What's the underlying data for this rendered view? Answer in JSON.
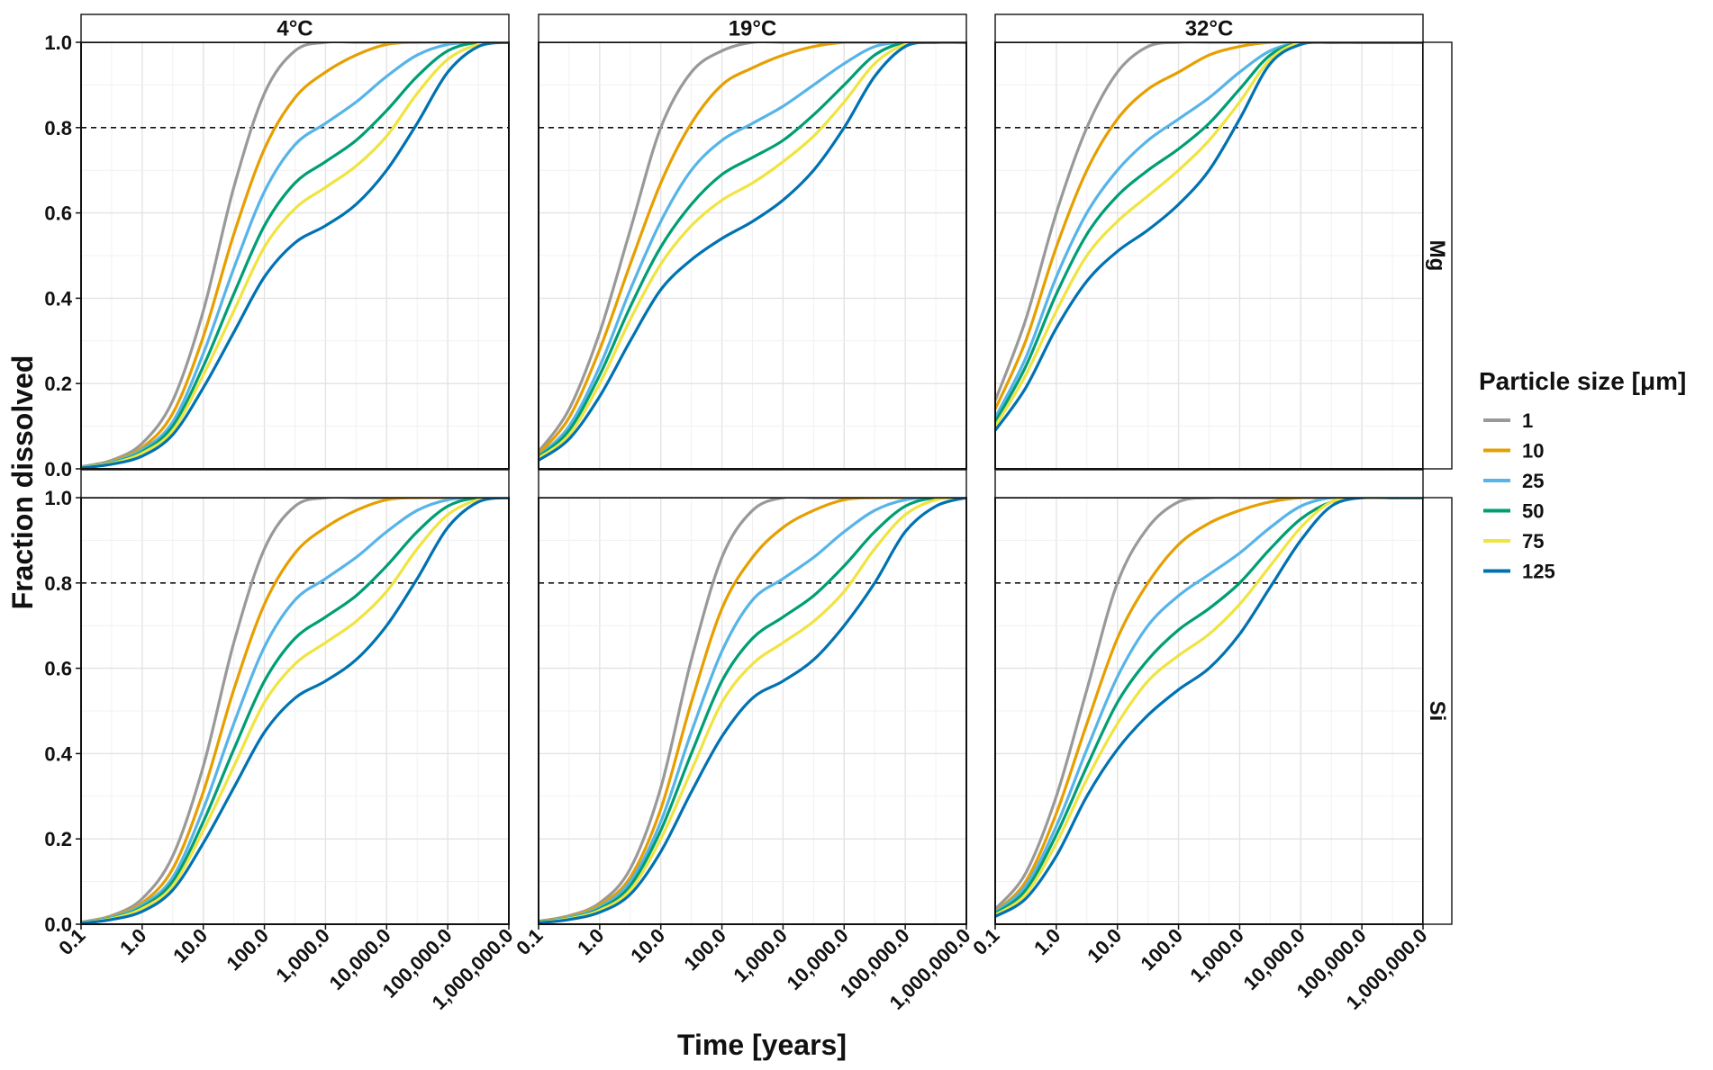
{
  "chart_data": {
    "type": "line",
    "xlabel": "Time [years]",
    "ylabel": "Fraction dissolved",
    "x_scale": "log10",
    "xlim": [
      0.1,
      1000000
    ],
    "ylim": [
      0,
      1
    ],
    "x_ticks": [
      0.1,
      1,
      10,
      100,
      1000,
      10000,
      100000,
      1000000
    ],
    "x_tick_labels": [
      "0.1",
      "1.0",
      "10.0",
      "100.0",
      "1,000.0",
      "10,000.0",
      "100,000.0",
      "1,000,000.0"
    ],
    "y_ticks": [
      0,
      0.2,
      0.4,
      0.6,
      0.8,
      1.0
    ],
    "y_tick_labels": [
      "0.0",
      "0.2",
      "0.4",
      "0.6",
      "0.8",
      "1.0"
    ],
    "reference_line": {
      "y": 0.8,
      "style": "dashed"
    },
    "grid": true,
    "columns": [
      "4°C",
      "19°C",
      "32°C"
    ],
    "rows": [
      "Mg",
      "Si"
    ],
    "legend": {
      "title": "Particle size [μm]",
      "position": "right",
      "entries": [
        {
          "label": "1",
          "color": "#999999"
        },
        {
          "label": "10",
          "color": "#E69F00"
        },
        {
          "label": "25",
          "color": "#56B4E9"
        },
        {
          "label": "50",
          "color": "#009E73"
        },
        {
          "label": "75",
          "color": "#F0E442"
        },
        {
          "label": "125",
          "color": "#0072B2"
        }
      ]
    },
    "x_log10_grid": [
      -1,
      -0.5,
      0,
      0.5,
      1,
      1.5,
      2,
      2.5,
      3,
      3.5,
      4,
      4.5,
      5,
      5.5,
      6
    ],
    "panels": [
      {
        "column": "4°C",
        "row": "Mg",
        "series": [
          {
            "name": "1",
            "values": [
              0.005,
              0.02,
              0.06,
              0.16,
              0.37,
              0.66,
              0.88,
              0.98,
              1.0,
              1.0,
              1.0,
              1.0,
              1.0,
              1.0,
              1.0
            ]
          },
          {
            "name": "10",
            "values": [
              0.004,
              0.018,
              0.05,
              0.13,
              0.31,
              0.55,
              0.75,
              0.87,
              0.93,
              0.97,
              0.995,
              1.0,
              1.0,
              1.0,
              1.0
            ]
          },
          {
            "name": "25",
            "values": [
              0.004,
              0.016,
              0.045,
              0.11,
              0.27,
              0.47,
              0.65,
              0.76,
              0.81,
              0.86,
              0.92,
              0.97,
              0.995,
              1.0,
              1.0
            ]
          },
          {
            "name": "50",
            "values": [
              0.003,
              0.014,
              0.04,
              0.1,
              0.24,
              0.41,
              0.57,
              0.67,
              0.72,
              0.77,
              0.84,
              0.92,
              0.98,
              1.0,
              1.0
            ]
          },
          {
            "name": "75",
            "values": [
              0.003,
              0.013,
              0.037,
              0.09,
              0.22,
              0.37,
              0.52,
              0.61,
              0.66,
              0.71,
              0.78,
              0.88,
              0.96,
              0.995,
              1.0
            ]
          },
          {
            "name": "125",
            "values": [
              0.002,
              0.011,
              0.03,
              0.08,
              0.19,
              0.32,
              0.45,
              0.53,
              0.57,
              0.62,
              0.7,
              0.81,
              0.93,
              0.99,
              1.0
            ]
          }
        ]
      },
      {
        "column": "19°C",
        "row": "Mg",
        "series": [
          {
            "name": "1",
            "values": [
              0.04,
              0.14,
              0.32,
              0.56,
              0.8,
              0.93,
              0.98,
              1.0,
              1.0,
              1.0,
              1.0,
              1.0,
              1.0,
              1.0,
              1.0
            ]
          },
          {
            "name": "10",
            "values": [
              0.035,
              0.12,
              0.28,
              0.48,
              0.67,
              0.81,
              0.9,
              0.94,
              0.97,
              0.99,
              1.0,
              1.0,
              1.0,
              1.0,
              1.0
            ]
          },
          {
            "name": "25",
            "values": [
              0.03,
              0.1,
              0.24,
              0.42,
              0.58,
              0.7,
              0.77,
              0.81,
              0.85,
              0.9,
              0.95,
              0.99,
              1.0,
              1.0,
              1.0
            ]
          },
          {
            "name": "50",
            "values": [
              0.028,
              0.09,
              0.22,
              0.38,
              0.52,
              0.62,
              0.69,
              0.73,
              0.77,
              0.83,
              0.9,
              0.97,
              1.0,
              1.0,
              1.0
            ]
          },
          {
            "name": "75",
            "values": [
              0.025,
              0.08,
              0.2,
              0.35,
              0.48,
              0.57,
              0.63,
              0.67,
              0.72,
              0.78,
              0.86,
              0.95,
              0.995,
              1.0,
              1.0
            ]
          },
          {
            "name": "125",
            "values": [
              0.02,
              0.07,
              0.17,
              0.3,
              0.42,
              0.49,
              0.54,
              0.58,
              0.63,
              0.7,
              0.8,
              0.92,
              0.99,
              1.0,
              1.0
            ]
          }
        ]
      },
      {
        "column": "32°C",
        "row": "Mg",
        "series": [
          {
            "name": "1",
            "values": [
              0.16,
              0.35,
              0.6,
              0.8,
              0.93,
              0.99,
              1.0,
              1.0,
              1.0,
              1.0,
              1.0,
              1.0,
              1.0,
              1.0,
              1.0
            ]
          },
          {
            "name": "10",
            "values": [
              0.14,
              0.3,
              0.52,
              0.7,
              0.82,
              0.89,
              0.93,
              0.97,
              0.99,
              1.0,
              1.0,
              1.0,
              1.0,
              1.0,
              1.0
            ]
          },
          {
            "name": "25",
            "values": [
              0.12,
              0.26,
              0.45,
              0.6,
              0.7,
              0.77,
              0.82,
              0.87,
              0.93,
              0.98,
              1.0,
              1.0,
              1.0,
              1.0,
              1.0
            ]
          },
          {
            "name": "50",
            "values": [
              0.11,
              0.24,
              0.41,
              0.55,
              0.64,
              0.7,
              0.75,
              0.81,
              0.89,
              0.97,
              1.0,
              1.0,
              1.0,
              1.0,
              1.0
            ]
          },
          {
            "name": "75",
            "values": [
              0.1,
              0.22,
              0.37,
              0.5,
              0.58,
              0.64,
              0.7,
              0.77,
              0.86,
              0.96,
              1.0,
              1.0,
              1.0,
              1.0,
              1.0
            ]
          },
          {
            "name": "125",
            "values": [
              0.09,
              0.19,
              0.33,
              0.44,
              0.51,
              0.56,
              0.62,
              0.7,
              0.82,
              0.95,
              0.995,
              1.0,
              1.0,
              1.0,
              1.0
            ]
          }
        ]
      },
      {
        "column": "4°C",
        "row": "Si",
        "series": [
          {
            "name": "1",
            "values": [
              0.005,
              0.02,
              0.06,
              0.16,
              0.37,
              0.66,
              0.88,
              0.98,
              1.0,
              1.0,
              1.0,
              1.0,
              1.0,
              1.0,
              1.0
            ]
          },
          {
            "name": "10",
            "values": [
              0.004,
              0.018,
              0.05,
              0.13,
              0.31,
              0.55,
              0.75,
              0.87,
              0.93,
              0.97,
              0.995,
              1.0,
              1.0,
              1.0,
              1.0
            ]
          },
          {
            "name": "25",
            "values": [
              0.004,
              0.016,
              0.045,
              0.11,
              0.27,
              0.47,
              0.65,
              0.76,
              0.81,
              0.86,
              0.92,
              0.97,
              0.995,
              1.0,
              1.0
            ]
          },
          {
            "name": "50",
            "values": [
              0.003,
              0.014,
              0.04,
              0.1,
              0.24,
              0.41,
              0.57,
              0.67,
              0.72,
              0.77,
              0.84,
              0.92,
              0.98,
              1.0,
              1.0
            ]
          },
          {
            "name": "75",
            "values": [
              0.003,
              0.013,
              0.037,
              0.09,
              0.22,
              0.37,
              0.52,
              0.61,
              0.66,
              0.71,
              0.78,
              0.88,
              0.96,
              0.995,
              1.0
            ]
          },
          {
            "name": "125",
            "values": [
              0.002,
              0.011,
              0.03,
              0.08,
              0.19,
              0.32,
              0.45,
              0.53,
              0.57,
              0.62,
              0.7,
              0.81,
              0.93,
              0.99,
              1.0
            ]
          }
        ]
      },
      {
        "column": "19°C",
        "row": "Si",
        "series": [
          {
            "name": "1",
            "values": [
              0.007,
              0.02,
              0.05,
              0.13,
              0.32,
              0.62,
              0.86,
              0.97,
              1.0,
              1.0,
              1.0,
              1.0,
              1.0,
              1.0,
              1.0
            ]
          },
          {
            "name": "10",
            "values": [
              0.006,
              0.018,
              0.045,
              0.11,
              0.27,
              0.52,
              0.74,
              0.86,
              0.93,
              0.97,
              0.995,
              1.0,
              1.0,
              1.0,
              1.0
            ]
          },
          {
            "name": "25",
            "values": [
              0.005,
              0.016,
              0.04,
              0.1,
              0.24,
              0.45,
              0.64,
              0.76,
              0.81,
              0.86,
              0.92,
              0.97,
              0.995,
              1.0,
              1.0
            ]
          },
          {
            "name": "50",
            "values": [
              0.005,
              0.014,
              0.036,
              0.09,
              0.22,
              0.4,
              0.57,
              0.67,
              0.72,
              0.77,
              0.84,
              0.92,
              0.98,
              1.0,
              1.0
            ]
          },
          {
            "name": "75",
            "values": [
              0.004,
              0.013,
              0.033,
              0.08,
              0.2,
              0.36,
              0.52,
              0.61,
              0.66,
              0.71,
              0.78,
              0.88,
              0.96,
              0.995,
              1.0
            ]
          },
          {
            "name": "125",
            "values": [
              0.003,
              0.011,
              0.028,
              0.07,
              0.17,
              0.31,
              0.44,
              0.53,
              0.57,
              0.62,
              0.7,
              0.8,
              0.92,
              0.98,
              1.0
            ]
          }
        ]
      },
      {
        "column": "32°C",
        "row": "Si",
        "series": [
          {
            "name": "1",
            "values": [
              0.035,
              0.12,
              0.3,
              0.55,
              0.8,
              0.93,
              0.99,
              1.0,
              1.0,
              1.0,
              1.0,
              1.0,
              1.0,
              1.0,
              1.0
            ]
          },
          {
            "name": "10",
            "values": [
              0.03,
              0.1,
              0.26,
              0.47,
              0.67,
              0.8,
              0.89,
              0.94,
              0.97,
              0.99,
              1.0,
              1.0,
              1.0,
              1.0,
              1.0
            ]
          },
          {
            "name": "25",
            "values": [
              0.028,
              0.09,
              0.23,
              0.41,
              0.58,
              0.7,
              0.77,
              0.82,
              0.87,
              0.93,
              0.98,
              1.0,
              1.0,
              1.0,
              1.0
            ]
          },
          {
            "name": "50",
            "values": [
              0.025,
              0.08,
              0.21,
              0.37,
              0.52,
              0.62,
              0.69,
              0.74,
              0.8,
              0.88,
              0.95,
              0.99,
              1.0,
              1.0,
              1.0
            ]
          },
          {
            "name": "75",
            "values": [
              0.022,
              0.07,
              0.19,
              0.34,
              0.47,
              0.57,
              0.63,
              0.68,
              0.75,
              0.84,
              0.93,
              0.99,
              1.0,
              1.0,
              1.0
            ]
          },
          {
            "name": "125",
            "values": [
              0.018,
              0.06,
              0.16,
              0.3,
              0.41,
              0.49,
              0.55,
              0.6,
              0.68,
              0.79,
              0.9,
              0.98,
              1.0,
              1.0,
              1.0
            ]
          }
        ]
      }
    ]
  }
}
